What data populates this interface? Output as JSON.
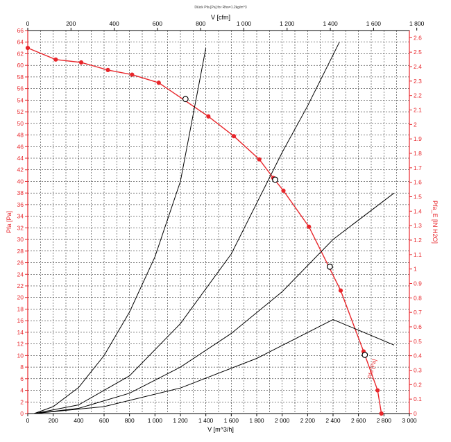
{
  "chart_data": {
    "type": "line",
    "title": "Diück Pfa [Pa] for Rho=1.2kg/m^3",
    "xlabel_bottom": "V [m^3/h]",
    "xlabel_top": "V [cfm]",
    "ylabel_left": "Pfa [Pa]",
    "ylabel_right": "Pfa_E [IN H2O]",
    "xlim": [
      0,
      3000
    ],
    "ylim": [
      0,
      66
    ],
    "x_ticks_bottom": [
      "0",
      "200",
      "400",
      "600",
      "800",
      "1 000",
      "1 200",
      "1 400",
      "1 600",
      "1 800",
      "2 000",
      "2 200",
      "2 400",
      "2 600",
      "2 800",
      "3 000"
    ],
    "x_ticks_top": [
      "0",
      "200",
      "400",
      "600",
      "800",
      "1 000",
      "1 200",
      "1 400",
      "1 600",
      "1 800"
    ],
    "y_ticks_left": [
      "0",
      "2",
      "4",
      "6",
      "8",
      "10",
      "12",
      "14",
      "16",
      "18",
      "20",
      "22",
      "24",
      "26",
      "28",
      "30",
      "32",
      "34",
      "36",
      "38",
      "40",
      "42",
      "44",
      "46",
      "48",
      "50",
      "52",
      "54",
      "56",
      "58",
      "60",
      "62",
      "64",
      "66"
    ],
    "y_ticks_right": [
      "0",
      "0.1",
      "0.2",
      "0.3",
      "0.4",
      "0.5",
      "0.6",
      "0.7",
      "0.8",
      "0.9",
      "1",
      "1.1",
      "1.2",
      "1.3",
      "1.4",
      "1.5",
      "1.6",
      "1.7",
      "1.8",
      "1.9",
      "2",
      "2.1",
      "2.2",
      "2.3",
      "2.4",
      "2.5",
      "2.6"
    ],
    "grid": true,
    "fan_curve_label": "Pfa [Pa]",
    "series": [
      {
        "x": [
          0,
          220,
          420,
          630,
          820,
          1030,
          1420,
          1620,
          1820,
          1930,
          2010,
          2210,
          2460,
          2640,
          2750,
          2780
        ],
        "y": [
          63,
          61,
          60.5,
          59.2,
          58.4,
          57,
          51.2,
          47.8,
          43.8,
          40.6,
          38.4,
          32.2,
          21.2,
          10.7,
          4,
          0
        ],
        "color": "#e8262b"
      },
      {
        "x": [
          50,
          200,
          400,
          600,
          800,
          1000,
          1200,
          1400
        ],
        "y": [
          0,
          1.2,
          4.5,
          10,
          17.5,
          27,
          40,
          63
        ],
        "color": "#000000"
      },
      {
        "x": [
          50,
          400,
          800,
          1200,
          1600,
          2000,
          2200,
          2450
        ],
        "y": [
          0,
          1.5,
          6.5,
          15.5,
          27.5,
          45,
          53,
          64
        ],
        "color": "#000000"
      },
      {
        "x": [
          50,
          400,
          800,
          1200,
          1600,
          2000,
          2400,
          2880
        ],
        "y": [
          0,
          0.9,
          3.5,
          8,
          13.8,
          21,
          30,
          38
        ]
      },
      {
        "x": [
          50,
          600,
          1200,
          1800,
          2400,
          2880
        ],
        "y": [
          0,
          1.2,
          4.4,
          9.5,
          16.2,
          11.8
        ],
        "color": "#000000"
      }
    ],
    "operating_points": [
      {
        "x": 1240,
        "y": 54.2
      },
      {
        "x": 1945,
        "y": 40.3
      },
      {
        "x": 2375,
        "y": 25.3
      },
      {
        "x": 2650,
        "y": 10.1
      }
    ]
  }
}
